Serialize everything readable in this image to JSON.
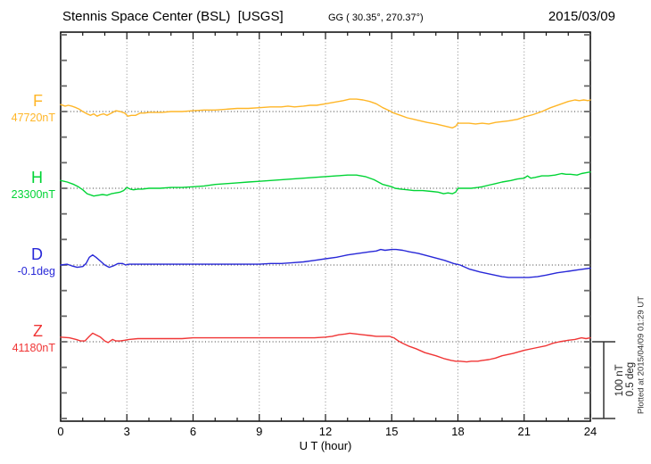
{
  "header": {
    "title": "Stennis Space Center (BSL)  [USGS]",
    "coords": "GG ( 30.35°, 270.37°)",
    "date": "2015/03/09"
  },
  "footer": {
    "plotted_at": "Plotted at 2015/04/09 01:29 UT"
  },
  "scalebar": {
    "nt_label": "100 nT",
    "deg_label": "0.5 deg"
  },
  "chart_data": {
    "type": "line",
    "title": "Stennis Space Center (BSL) [USGS] magnetogram",
    "xlabel": "U T (hour)",
    "xlim": [
      0,
      24
    ],
    "xticks": [
      "0",
      "3",
      "6",
      "9",
      "12",
      "15",
      "18",
      "21",
      "24"
    ],
    "grid": "dotted vertical gridlines every 3 hours; dotted horizontal baseline per channel",
    "legend_position": "channel letter and baseline value at left of each trace",
    "scale_reference": {
      "bar_nT": 100,
      "bar_deg": 0.5
    },
    "series": [
      {
        "name": "F",
        "baseline_label": "47720nT",
        "baseline_value": 47720,
        "unit": "nT",
        "color": "#FFB627",
        "points_are": "[UT hour, delta from baseline in nT]",
        "points": [
          [
            0,
            9
          ],
          [
            0.2,
            7
          ],
          [
            0.35,
            8
          ],
          [
            0.5,
            7
          ],
          [
            0.7,
            5
          ],
          [
            0.85,
            3
          ],
          [
            1,
            0
          ],
          [
            1.2,
            -3
          ],
          [
            1.35,
            -5
          ],
          [
            1.5,
            -3
          ],
          [
            1.65,
            -6
          ],
          [
            1.8,
            -4
          ],
          [
            1.95,
            -3
          ],
          [
            2.1,
            -5
          ],
          [
            2.3,
            -2
          ],
          [
            2.5,
            1
          ],
          [
            2.7,
            0
          ],
          [
            2.9,
            -2
          ],
          [
            3.05,
            -6
          ],
          [
            3.2,
            -5
          ],
          [
            3.4,
            -5
          ],
          [
            3.6,
            -2
          ],
          [
            3.8,
            -2
          ],
          [
            4,
            -1
          ],
          [
            4.3,
            -1
          ],
          [
            4.6,
            -1
          ],
          [
            5,
            0
          ],
          [
            5.5,
            0
          ],
          [
            6,
            1
          ],
          [
            6.5,
            2
          ],
          [
            7,
            2
          ],
          [
            7.5,
            3
          ],
          [
            8,
            4
          ],
          [
            8.5,
            4
          ],
          [
            9,
            5
          ],
          [
            9.5,
            6
          ],
          [
            10,
            6
          ],
          [
            10.3,
            7
          ],
          [
            10.6,
            6
          ],
          [
            11,
            7
          ],
          [
            11.3,
            8
          ],
          [
            11.6,
            8
          ],
          [
            12,
            10
          ],
          [
            12.4,
            12
          ],
          [
            12.8,
            14
          ],
          [
            13.1,
            16
          ],
          [
            13.4,
            16
          ],
          [
            13.7,
            15
          ],
          [
            14,
            13
          ],
          [
            14.3,
            10
          ],
          [
            14.6,
            5
          ],
          [
            14.9,
            1
          ],
          [
            15.1,
            -2
          ],
          [
            15.4,
            -5
          ],
          [
            15.7,
            -8
          ],
          [
            16,
            -10
          ],
          [
            16.3,
            -12
          ],
          [
            16.6,
            -14
          ],
          [
            17,
            -16
          ],
          [
            17.3,
            -18
          ],
          [
            17.6,
            -20
          ],
          [
            17.75,
            -21
          ],
          [
            17.9,
            -19
          ],
          [
            18,
            -15
          ],
          [
            18.2,
            -15
          ],
          [
            18.5,
            -15
          ],
          [
            18.8,
            -16
          ],
          [
            19.1,
            -15
          ],
          [
            19.4,
            -16
          ],
          [
            19.7,
            -14
          ],
          [
            20,
            -13
          ],
          [
            20.3,
            -12
          ],
          [
            20.7,
            -10
          ],
          [
            21,
            -7
          ],
          [
            21.4,
            -4
          ],
          [
            21.8,
            0
          ],
          [
            22.2,
            5
          ],
          [
            22.6,
            9
          ],
          [
            23,
            13
          ],
          [
            23.3,
            15
          ],
          [
            23.5,
            14
          ],
          [
            23.7,
            15
          ],
          [
            23.9,
            14
          ],
          [
            24,
            15
          ]
        ]
      },
      {
        "name": "H",
        "baseline_label": "23300nT",
        "baseline_value": 23300,
        "unit": "nT",
        "color": "#00D435",
        "points_are": "[UT hour, delta from baseline in nT]",
        "points": [
          [
            0,
            10
          ],
          [
            0.3,
            8
          ],
          [
            0.6,
            5
          ],
          [
            0.8,
            2
          ],
          [
            1,
            -2
          ],
          [
            1.2,
            -7
          ],
          [
            1.5,
            -10
          ],
          [
            1.7,
            -9
          ],
          [
            1.9,
            -8
          ],
          [
            2.1,
            -9
          ],
          [
            2.3,
            -7
          ],
          [
            2.5,
            -6
          ],
          [
            2.7,
            -5
          ],
          [
            2.85,
            -3
          ],
          [
            3,
            1
          ],
          [
            3.15,
            -1
          ],
          [
            3.3,
            -2
          ],
          [
            3.5,
            -1
          ],
          [
            3.7,
            -1
          ],
          [
            4,
            0
          ],
          [
            4.5,
            0
          ],
          [
            5,
            1
          ],
          [
            5.5,
            1
          ],
          [
            6,
            2
          ],
          [
            6.5,
            3
          ],
          [
            7,
            5
          ],
          [
            7.5,
            6
          ],
          [
            8,
            7
          ],
          [
            8.5,
            8
          ],
          [
            9,
            9
          ],
          [
            9.5,
            10
          ],
          [
            10,
            11
          ],
          [
            10.5,
            12
          ],
          [
            11,
            13
          ],
          [
            11.5,
            14
          ],
          [
            12,
            15
          ],
          [
            12.5,
            16
          ],
          [
            13,
            17
          ],
          [
            13.4,
            17
          ],
          [
            13.8,
            15
          ],
          [
            14.2,
            11
          ],
          [
            14.6,
            5
          ],
          [
            15,
            2
          ],
          [
            15.15,
            0
          ],
          [
            15.4,
            -1
          ],
          [
            15.7,
            -2
          ],
          [
            16,
            -3
          ],
          [
            16.4,
            -3
          ],
          [
            16.8,
            -4
          ],
          [
            17.1,
            -5
          ],
          [
            17.35,
            -7
          ],
          [
            17.55,
            -6
          ],
          [
            17.75,
            -7
          ],
          [
            17.9,
            -5
          ],
          [
            18,
            0
          ],
          [
            18.3,
            0
          ],
          [
            18.6,
            0
          ],
          [
            18.9,
            1
          ],
          [
            19.1,
            2
          ],
          [
            19.4,
            4
          ],
          [
            19.7,
            6
          ],
          [
            20,
            8
          ],
          [
            20.4,
            10
          ],
          [
            20.7,
            12
          ],
          [
            21,
            13
          ],
          [
            21.15,
            16
          ],
          [
            21.3,
            13
          ],
          [
            21.5,
            14
          ],
          [
            21.8,
            16
          ],
          [
            22.1,
            16
          ],
          [
            22.4,
            17
          ],
          [
            22.7,
            19
          ],
          [
            22.9,
            18
          ],
          [
            23.1,
            18
          ],
          [
            23.4,
            17
          ],
          [
            23.6,
            19
          ],
          [
            23.8,
            20
          ],
          [
            24,
            21
          ]
        ]
      },
      {
        "name": "D",
        "baseline_label": "-0.1deg",
        "baseline_value": -0.1,
        "unit": "deg",
        "color": "#2828D8",
        "points_are": "[UT hour, delta from baseline in deg]",
        "points": [
          [
            0,
            0
          ],
          [
            0.3,
            0.005
          ],
          [
            0.5,
            -0.005
          ],
          [
            0.75,
            -0.015
          ],
          [
            1,
            -0.01
          ],
          [
            1.15,
            0.01
          ],
          [
            1.3,
            0.05
          ],
          [
            1.45,
            0.065
          ],
          [
            1.6,
            0.05
          ],
          [
            1.8,
            0.025
          ],
          [
            2,
            0
          ],
          [
            2.2,
            -0.015
          ],
          [
            2.4,
            -0.005
          ],
          [
            2.6,
            0.01
          ],
          [
            2.8,
            0.01
          ],
          [
            2.95,
            0
          ],
          [
            3.1,
            0.005
          ],
          [
            3.4,
            0.005
          ],
          [
            3.7,
            0.005
          ],
          [
            4,
            0.005
          ],
          [
            4.5,
            0.005
          ],
          [
            5,
            0.005
          ],
          [
            5.5,
            0.005
          ],
          [
            6,
            0.005
          ],
          [
            6.5,
            0.005
          ],
          [
            7,
            0.005
          ],
          [
            7.5,
            0.005
          ],
          [
            8,
            0.005
          ],
          [
            8.5,
            0.005
          ],
          [
            9,
            0.005
          ],
          [
            9.5,
            0.01
          ],
          [
            10,
            0.01
          ],
          [
            10.5,
            0.015
          ],
          [
            11,
            0.02
          ],
          [
            11.5,
            0.03
          ],
          [
            12,
            0.04
          ],
          [
            12.5,
            0.05
          ],
          [
            13,
            0.065
          ],
          [
            13.5,
            0.075
          ],
          [
            14,
            0.085
          ],
          [
            14.3,
            0.09
          ],
          [
            14.5,
            0.1
          ],
          [
            14.7,
            0.095
          ],
          [
            15,
            0.1
          ],
          [
            15.2,
            0.1
          ],
          [
            15.5,
            0.095
          ],
          [
            15.8,
            0.085
          ],
          [
            16.2,
            0.075
          ],
          [
            16.6,
            0.06
          ],
          [
            17,
            0.045
          ],
          [
            17.4,
            0.03
          ],
          [
            17.8,
            0.01
          ],
          [
            18.1,
            0
          ],
          [
            18.5,
            -0.025
          ],
          [
            19,
            -0.045
          ],
          [
            19.5,
            -0.06
          ],
          [
            20,
            -0.075
          ],
          [
            20.3,
            -0.08
          ],
          [
            20.7,
            -0.08
          ],
          [
            21.2,
            -0.08
          ],
          [
            21.6,
            -0.075
          ],
          [
            22,
            -0.065
          ],
          [
            22.5,
            -0.05
          ],
          [
            23,
            -0.04
          ],
          [
            23.5,
            -0.03
          ],
          [
            24,
            -0.02
          ]
        ]
      },
      {
        "name": "Z",
        "baseline_label": "41180nT",
        "baseline_value": 41180,
        "unit": "nT",
        "color": "#F03535",
        "points_are": "[UT hour, delta from baseline in nT]",
        "points": [
          [
            0,
            6
          ],
          [
            0.4,
            5
          ],
          [
            0.7,
            3
          ],
          [
            0.9,
            1
          ],
          [
            1.1,
            1
          ],
          [
            1.3,
            7
          ],
          [
            1.45,
            11
          ],
          [
            1.6,
            9
          ],
          [
            1.8,
            6
          ],
          [
            2,
            1
          ],
          [
            2.15,
            -1
          ],
          [
            2.35,
            3
          ],
          [
            2.5,
            1
          ],
          [
            2.7,
            1
          ],
          [
            2.9,
            2
          ],
          [
            3.1,
            3
          ],
          [
            3.5,
            4
          ],
          [
            4,
            4
          ],
          [
            4.5,
            4
          ],
          [
            5,
            4
          ],
          [
            5.5,
            4
          ],
          [
            6,
            5
          ],
          [
            6.5,
            5
          ],
          [
            7,
            5
          ],
          [
            7.5,
            5
          ],
          [
            8,
            5
          ],
          [
            8.5,
            5
          ],
          [
            9,
            5
          ],
          [
            9.5,
            5
          ],
          [
            10,
            5
          ],
          [
            10.5,
            5
          ],
          [
            11,
            5
          ],
          [
            11.5,
            5
          ],
          [
            12,
            6
          ],
          [
            12.3,
            7
          ],
          [
            12.6,
            9
          ],
          [
            12.9,
            10
          ],
          [
            13.1,
            11
          ],
          [
            13.4,
            10
          ],
          [
            13.7,
            9
          ],
          [
            14,
            8
          ],
          [
            14.3,
            7
          ],
          [
            14.6,
            7
          ],
          [
            14.9,
            7
          ],
          [
            15.1,
            5
          ],
          [
            15.3,
            1
          ],
          [
            15.5,
            -2
          ],
          [
            15.8,
            -6
          ],
          [
            16.1,
            -9
          ],
          [
            16.5,
            -14
          ],
          [
            17,
            -18
          ],
          [
            17.4,
            -22
          ],
          [
            17.7,
            -24
          ],
          [
            17.9,
            -25
          ],
          [
            18.1,
            -25
          ],
          [
            18.4,
            -26
          ],
          [
            18.6,
            -25
          ],
          [
            18.9,
            -25
          ],
          [
            19.1,
            -24
          ],
          [
            19.4,
            -23
          ],
          [
            19.7,
            -21
          ],
          [
            20,
            -18
          ],
          [
            20.5,
            -15
          ],
          [
            21,
            -11
          ],
          [
            21.5,
            -8
          ],
          [
            22,
            -5
          ],
          [
            22.3,
            -2
          ],
          [
            22.6,
            0
          ],
          [
            23,
            2
          ],
          [
            23.3,
            3
          ],
          [
            23.6,
            5
          ],
          [
            23.8,
            4
          ],
          [
            24,
            5
          ]
        ]
      }
    ]
  }
}
